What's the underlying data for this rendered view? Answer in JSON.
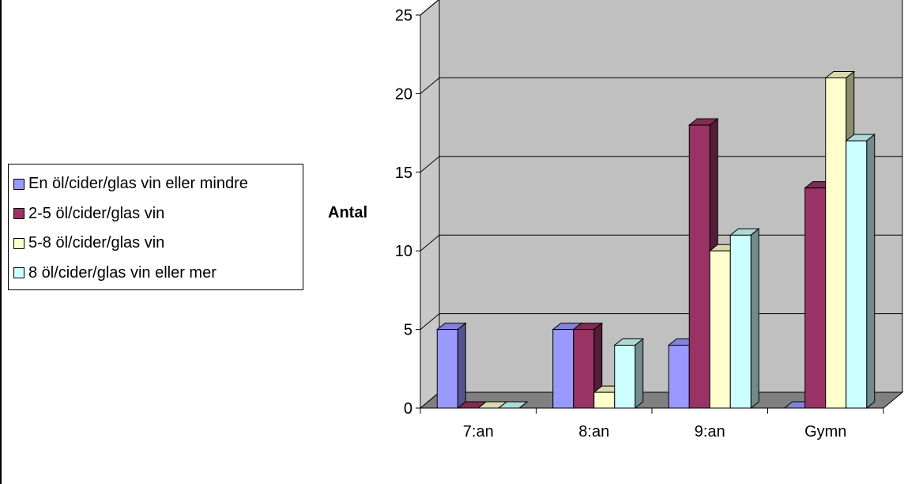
{
  "chart_data": {
    "type": "bar",
    "categories": [
      "7:an",
      "8:an",
      "9:an",
      "Gymn"
    ],
    "series": [
      {
        "name": "En öl/cider/glas vin eller mindre",
        "values": [
          5,
          5,
          4,
          0
        ],
        "color": "#9999ff"
      },
      {
        "name": "2-5 öl/cider/glas vin",
        "values": [
          0,
          5,
          18,
          14
        ],
        "color": "#993366"
      },
      {
        "name": "5-8 öl/cider/glas vin",
        "values": [
          0,
          1,
          10,
          21
        ],
        "color": "#ffffcc"
      },
      {
        "name": "8 öl/cider/glas vin eller mer",
        "values": [
          0,
          4,
          11,
          17
        ],
        "color": "#ccffff"
      }
    ],
    "ylabel": "Antal",
    "ylim": [
      0,
      25
    ],
    "yticks": [
      "0",
      "5",
      "10",
      "15",
      "20",
      "25"
    ],
    "grid": true,
    "legend_position": "left",
    "wall_color": "#c0c0c0",
    "floor_color": "#808080"
  }
}
